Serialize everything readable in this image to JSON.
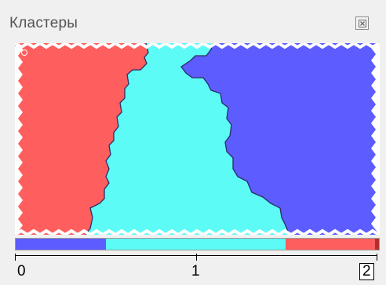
{
  "window": {
    "title": "Кластеры"
  },
  "icons": {
    "close": "close-icon",
    "marker": "position-marker-icon"
  },
  "colors": {
    "cluster_red": "#ff5e5e",
    "cluster_cyan": "#5cfbf5",
    "cluster_blue": "#5c5cff",
    "border": "#2c2c66",
    "legend_end": "#b03030"
  },
  "clusters": [
    {
      "id": 0,
      "color": "#5c5cff"
    },
    {
      "id": 1,
      "color": "#5cfbf5"
    },
    {
      "id": 2,
      "color": "#ff5e5e"
    }
  ],
  "legend": {
    "segments": [
      {
        "cluster": 0,
        "fraction": 0.25
      },
      {
        "cluster": 1,
        "fraction": 0.5
      },
      {
        "cluster": 2,
        "fraction": 0.25
      }
    ]
  },
  "scale": {
    "labels": [
      "0",
      "1",
      "2"
    ],
    "selected": "2"
  }
}
